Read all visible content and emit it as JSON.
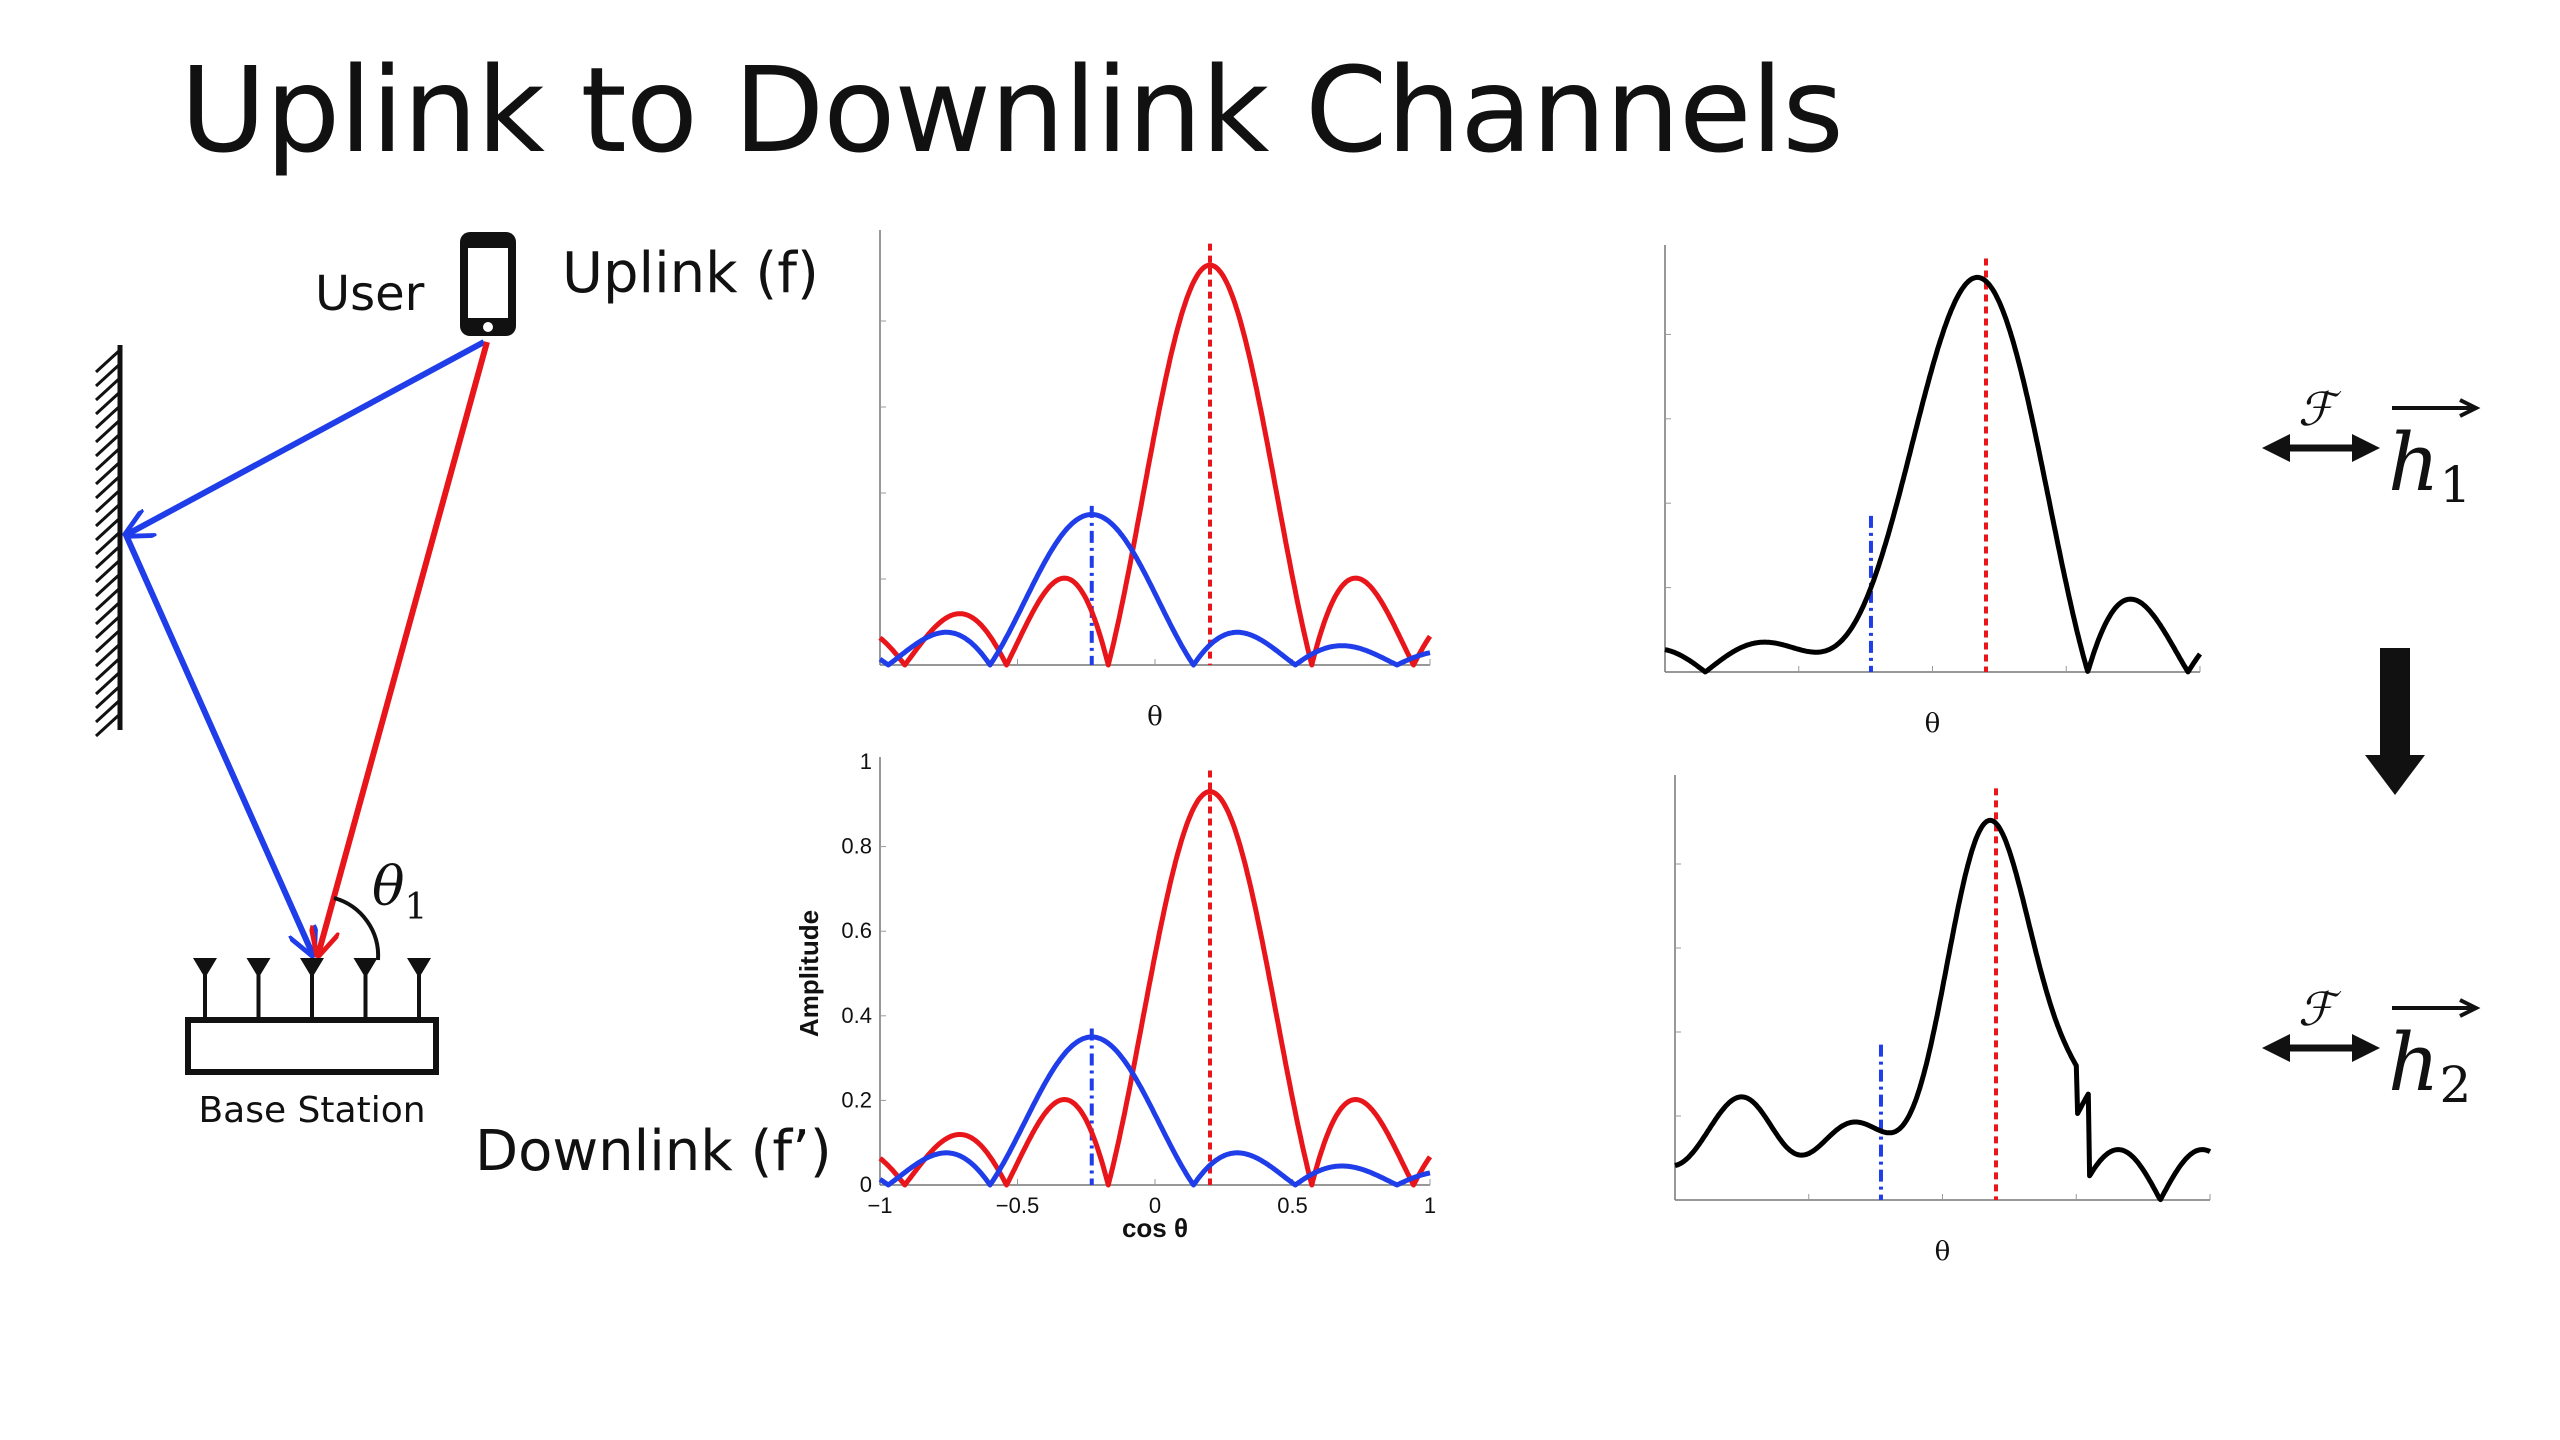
{
  "title": "Uplink to Downlink Channels",
  "scene": {
    "user_label": "User",
    "uplink_label": "Uplink (f)",
    "downlink_label": "Downlink (f’)",
    "base_station_label": "Base Station",
    "angle_label": "θ",
    "angle_subscript": "1",
    "antenna_count": 5
  },
  "transforms": [
    {
      "symbol": "ℱ",
      "vector": "h",
      "subscript": "1"
    },
    {
      "symbol": "ℱ",
      "vector": "h",
      "subscript": "2"
    }
  ],
  "colors": {
    "direct_path": "#e8161b",
    "reflected_path": "#1f3de8",
    "combined": "#000000"
  },
  "chart_data": [
    {
      "id": "uplink-paths",
      "type": "line",
      "xlabel": "θ",
      "ylabel": "",
      "xlim": [
        -1,
        1
      ],
      "ylim": [
        0,
        1
      ],
      "ticks_shown": false,
      "series": [
        {
          "color": "#e8161b",
          "peak_x": 0.2,
          "peak_y": 0.93
        },
        {
          "color": "#1f3de8",
          "peak_x": -0.23,
          "peak_y": 0.35
        }
      ],
      "markers": [
        {
          "x": 0.2,
          "color": "#e8161b",
          "style": "dotted"
        },
        {
          "x": -0.23,
          "color": "#1f3de8",
          "style": "dash-dot"
        }
      ]
    },
    {
      "id": "downlink-paths",
      "type": "line",
      "xlabel": "cos θ",
      "ylabel": "Amplitude",
      "xlim": [
        -1,
        1
      ],
      "ylim": [
        0,
        1
      ],
      "ticks_shown": true,
      "xticks": [
        -1,
        -0.5,
        0,
        0.5,
        1
      ],
      "xtick_labels": [
        "−1",
        "−0.5",
        "0",
        "0.5",
        "1"
      ],
      "yticks": [
        0,
        0.2,
        0.4,
        0.6,
        0.8,
        1
      ],
      "ytick_labels": [
        "0",
        "0.2",
        "0.4",
        "0.6",
        "0.8",
        "1"
      ],
      "series": [
        {
          "color": "#e8161b",
          "peak_x": 0.2,
          "peak_y": 0.93
        },
        {
          "color": "#1f3de8",
          "peak_x": -0.23,
          "peak_y": 0.35
        }
      ],
      "markers": [
        {
          "x": 0.2,
          "color": "#e8161b",
          "style": "dotted"
        },
        {
          "x": -0.23,
          "color": "#1f3de8",
          "style": "dash-dot"
        }
      ]
    },
    {
      "id": "uplink-combined",
      "type": "line",
      "xlabel": "θ",
      "ylabel": "",
      "xlim": [
        -1,
        1
      ],
      "ylim": [
        0,
        1
      ],
      "ticks_shown": false,
      "series": [
        {
          "color": "#000000",
          "peak_x": 0.2,
          "peak_y": 0.97
        }
      ],
      "markers": [
        {
          "x": 0.2,
          "color": "#e8161b",
          "style": "dotted"
        },
        {
          "x": -0.23,
          "color": "#1f3de8",
          "style": "dash-dot"
        }
      ]
    },
    {
      "id": "downlink-combined",
      "type": "line",
      "xlabel": "θ",
      "ylabel": "",
      "xlim": [
        -1,
        1
      ],
      "ylim": [
        0,
        1
      ],
      "ticks_shown": false,
      "series": [
        {
          "color": "#000000",
          "peak_x": 0.2,
          "peak_y": 0.88
        }
      ],
      "markers": [
        {
          "x": 0.2,
          "color": "#e8161b",
          "style": "dotted"
        },
        {
          "x": -0.23,
          "color": "#1f3de8",
          "style": "dash-dot"
        }
      ]
    }
  ]
}
